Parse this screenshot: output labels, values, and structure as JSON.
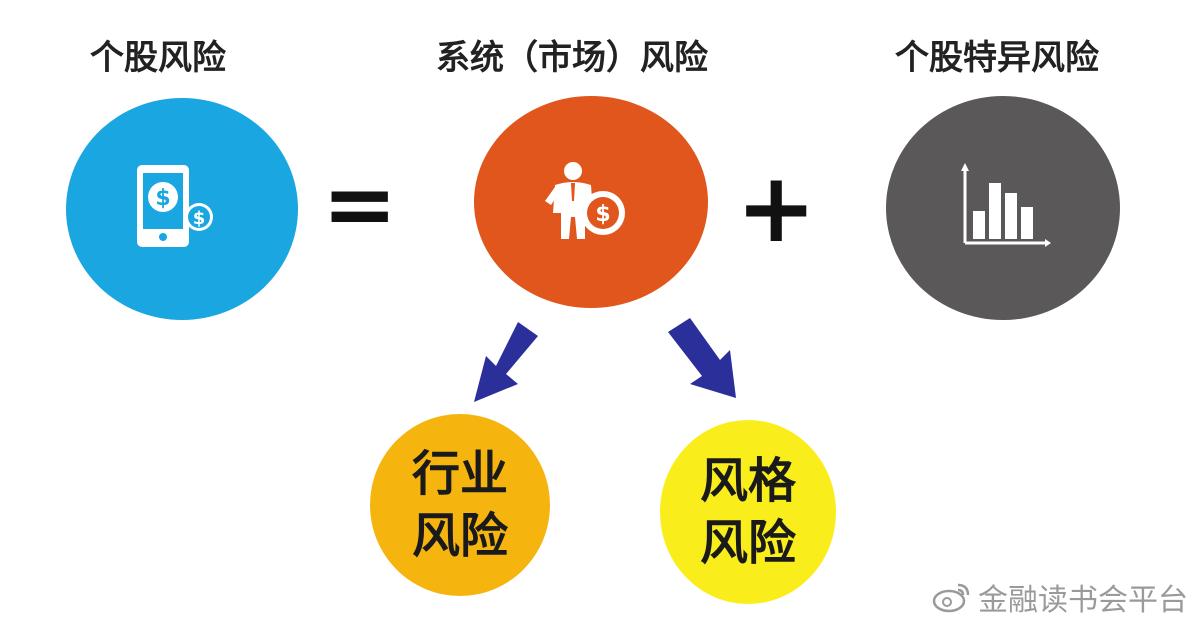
{
  "labels": {
    "stock_risk": "个股风险",
    "systematic_risk": "系统（市场）风险",
    "idiosyncratic_risk": "个股特异风险"
  },
  "operators": {
    "equals": "=",
    "plus": "+"
  },
  "sub_nodes": {
    "industry": {
      "line1": "行业",
      "line2": "风险"
    },
    "style": {
      "line1": "风格",
      "line2": "风险"
    }
  },
  "watermark": {
    "text": "金融读书会平台"
  },
  "colors": {
    "stock_circle": "#1aa6e0",
    "systematic_circle": "#e0561c",
    "idiosyncratic_circle": "#5b5859",
    "industry_circle": "#f6b40f",
    "style_circle": "#f9ee1b",
    "arrow": "#2b2f9a"
  },
  "icons": {
    "stock": "phone-dollar-icon",
    "systematic": "businessman-coin-icon",
    "idiosyncratic": "bar-chart-icon",
    "watermark": "weibo-icon"
  }
}
